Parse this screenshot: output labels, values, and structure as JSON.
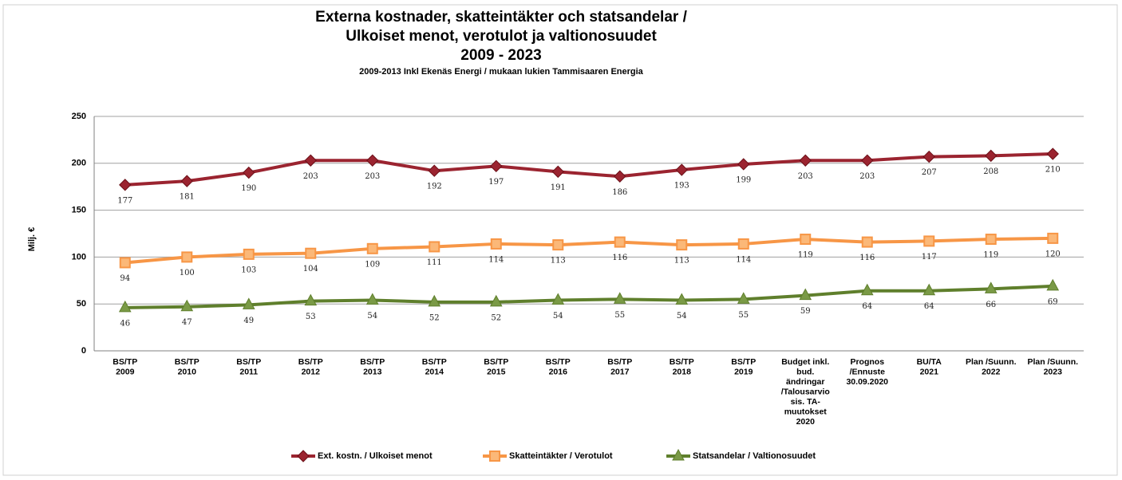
{
  "chart_data": {
    "type": "line",
    "title": [
      "Externa kostnader, skatteintäkter och statsandelar /",
      "Ulkoiset menot, verotulot ja valtionosuudet",
      "2009 - 2023"
    ],
    "subtitle": "2009-2013  Inkl Ekenäs Energi / mukaan lukien Tammisaaren Energia",
    "y_label": "Milj. €",
    "categories": [
      [
        "BS/TP",
        "2009"
      ],
      [
        "BS/TP",
        "2010"
      ],
      [
        "BS/TP",
        "2011"
      ],
      [
        "BS/TP",
        "2012"
      ],
      [
        "BS/TP",
        "2013"
      ],
      [
        "BS/TP",
        "2014"
      ],
      [
        "BS/TP",
        "2015"
      ],
      [
        "BS/TP",
        "2016"
      ],
      [
        "BS/TP",
        "2017"
      ],
      [
        "BS/TP",
        "2018"
      ],
      [
        "BS/TP",
        "2019"
      ],
      [
        "Budget inkl.",
        "bud.",
        "ändringar",
        "/Talousarvio",
        "sis. TA-",
        "muutokset",
        "2020"
      ],
      [
        "Prognos",
        "/Ennuste",
        "30.09.2020"
      ],
      [
        "BU/TA",
        "2021"
      ],
      [
        "Plan /Suunn.",
        "2022"
      ],
      [
        "Plan /Suunn.",
        "2023"
      ]
    ],
    "series": [
      {
        "name": "Ext. kostn. / Ulkoiset menot",
        "color": "#9b2430",
        "marker": "diamond",
        "values": [
          177,
          181,
          190,
          203,
          203,
          192,
          197,
          191,
          186,
          193,
          199,
          203,
          203,
          207,
          208,
          210
        ]
      },
      {
        "name": "Skatteintäkter / Verotulot",
        "color": "#f79646",
        "marker": "square",
        "values": [
          94,
          100,
          103,
          104,
          109,
          111,
          114,
          113,
          116,
          113,
          114,
          119,
          116,
          117,
          119,
          120
        ]
      },
      {
        "name": "Statsandelar / Valtionosuudet",
        "color": "#5f7f2c",
        "marker": "triangle",
        "values": [
          46,
          47,
          49,
          53,
          54,
          52,
          52,
          54,
          55,
          54,
          55,
          59,
          64,
          64,
          66,
          69
        ]
      }
    ],
    "ylim": [
      0,
      250
    ],
    "yticks": [
      0,
      50,
      100,
      150,
      200,
      250
    ],
    "grid": true,
    "legend": "bottom"
  }
}
